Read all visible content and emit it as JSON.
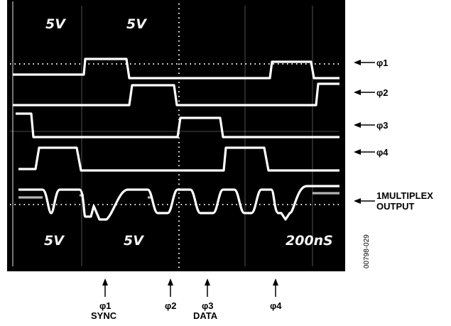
{
  "scope": {
    "top_labels": [
      "5V",
      "5V"
    ],
    "bottom_labels": [
      "5V",
      "5V",
      "200nS"
    ],
    "figure_code": "00798-029"
  },
  "channels": [
    {
      "label": "φ1"
    },
    {
      "label": "φ2"
    },
    {
      "label": "φ3"
    },
    {
      "label": "φ4"
    },
    {
      "label_line1": "1MULTIPLEX",
      "label_line2": "OUTPUT"
    }
  ],
  "bottom_markers": [
    {
      "line1": "φ1",
      "line2": "SYNC"
    },
    {
      "line1": "φ2",
      "line2": ""
    },
    {
      "line1": "φ3",
      "line2": "DATA"
    },
    {
      "line1": "φ4",
      "line2": ""
    }
  ],
  "colors": {
    "screen": "#000000",
    "trace": "#ffffff",
    "annotation": "#000000"
  }
}
